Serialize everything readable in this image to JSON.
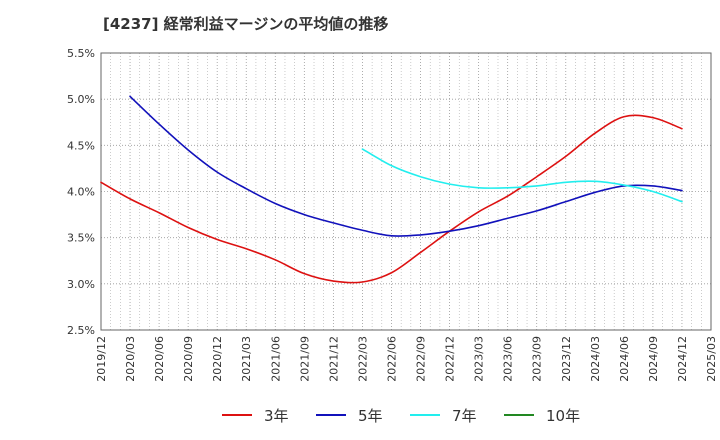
{
  "title": "[4237]  経常利益マージンの平均値の推移",
  "chart_data": {
    "type": "line",
    "title": "[4237]  経常利益マージンの平均値の推移",
    "xlabel": "",
    "ylabel": "",
    "ylim": [
      2.5,
      5.5
    ],
    "y_ticks": [
      "2.5%",
      "3.0%",
      "3.5%",
      "4.0%",
      "4.5%",
      "5.0%",
      "5.5%"
    ],
    "x_ticks": [
      "2019/12",
      "2020/03",
      "2020/06",
      "2020/09",
      "2020/12",
      "2021/03",
      "2021/06",
      "2021/09",
      "2021/12",
      "2022/03",
      "2022/06",
      "2022/09",
      "2022/12",
      "2023/03",
      "2023/06",
      "2023/09",
      "2023/12",
      "2024/03",
      "2024/06",
      "2024/09",
      "2024/12",
      "2025/03"
    ],
    "grid": true,
    "legend_position": "bottom",
    "series": [
      {
        "name": "3年",
        "color": "#dd1111",
        "x": [
          "2019/12",
          "2020/03",
          "2020/06",
          "2020/09",
          "2020/12",
          "2021/03",
          "2021/06",
          "2021/09",
          "2021/12",
          "2022/03",
          "2022/06",
          "2022/09",
          "2022/12",
          "2023/03",
          "2023/06",
          "2023/09",
          "2023/12",
          "2024/03",
          "2024/06",
          "2024/09",
          "2024/12"
        ],
        "values": [
          4.1,
          3.92,
          3.77,
          3.61,
          3.48,
          3.38,
          3.26,
          3.11,
          3.03,
          3.02,
          3.12,
          3.34,
          3.57,
          3.78,
          3.95,
          4.16,
          4.38,
          4.63,
          4.81,
          4.8,
          4.68
        ]
      },
      {
        "name": "5年",
        "color": "#1111bb",
        "x": [
          "2020/03",
          "2020/06",
          "2020/09",
          "2020/12",
          "2021/03",
          "2021/06",
          "2021/09",
          "2021/12",
          "2022/03",
          "2022/06",
          "2022/09",
          "2022/12",
          "2023/03",
          "2023/06",
          "2023/09",
          "2023/12",
          "2024/03",
          "2024/06",
          "2024/09",
          "2024/12"
        ],
        "values": [
          5.03,
          4.73,
          4.45,
          4.21,
          4.03,
          3.87,
          3.75,
          3.66,
          3.58,
          3.52,
          3.53,
          3.57,
          3.63,
          3.71,
          3.79,
          3.89,
          3.99,
          4.06,
          4.06,
          4.01
        ]
      },
      {
        "name": "7年",
        "color": "#22eeee",
        "x": [
          "2022/03",
          "2022/06",
          "2022/09",
          "2022/12",
          "2023/03",
          "2023/06",
          "2023/09",
          "2023/12",
          "2024/03",
          "2024/06",
          "2024/09",
          "2024/12"
        ],
        "values": [
          4.46,
          4.28,
          4.16,
          4.08,
          4.04,
          4.04,
          4.06,
          4.1,
          4.11,
          4.07,
          4.0,
          3.89
        ]
      },
      {
        "name": "10年",
        "color": "#228822",
        "x": [],
        "values": []
      }
    ]
  }
}
